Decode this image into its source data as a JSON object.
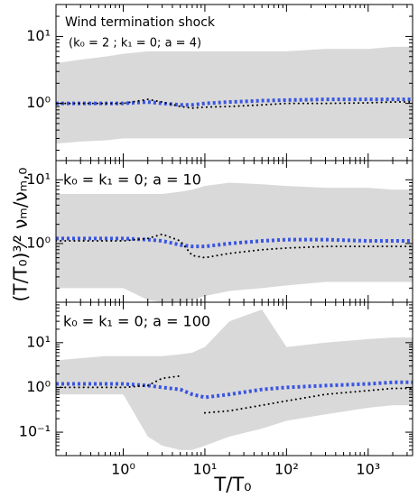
{
  "chart_data": [
    {
      "type": "line",
      "title": "Wind termination shock",
      "subtitle": "(k₀ = 2 ; k₁ = 0; a = 4)",
      "x": [
        0.15,
        0.3,
        0.6,
        1,
        2,
        3,
        5,
        7,
        10,
        20,
        50,
        100,
        300,
        1000,
        2000,
        3500
      ],
      "series": [
        {
          "name": "blue",
          "color": "#3a55e0",
          "values": [
            1,
            1,
            1,
            1,
            1.05,
            1.0,
            0.95,
            0.95,
            1,
            1.05,
            1.1,
            1.12,
            1.15,
            1.15,
            1.15,
            1.15
          ]
        },
        {
          "name": "black",
          "color": "#000000",
          "values": [
            1,
            1,
            1,
            1,
            1.15,
            1.05,
            0.9,
            0.85,
            0.88,
            0.9,
            0.95,
            1,
            1,
            1.02,
            1.05,
            1.05
          ]
        }
      ],
      "band": {
        "color": "#d9d9d9",
        "lower": [
          0.25,
          0.27,
          0.28,
          0.3,
          0.3,
          0.3,
          0.3,
          0.3,
          0.3,
          0.3,
          0.3,
          0.3,
          0.3,
          0.3,
          0.3,
          0.3
        ],
        "upper": [
          4,
          4.5,
          5,
          5.5,
          6,
          6,
          6,
          6,
          6,
          6,
          6,
          6,
          6.5,
          6.5,
          7,
          7
        ]
      },
      "ylim": [
        0.14,
        30
      ],
      "yticks": [
        {
          "value": 1,
          "label": "10⁰"
        },
        {
          "value": 10,
          "label": "10¹"
        }
      ],
      "log_y": true
    },
    {
      "type": "line",
      "title": "k₀ = k₁ = 0; a = 10",
      "ylabel": "(T/T₀)³⁄² νₘ/νₘ,₀",
      "x": [
        0.15,
        0.3,
        0.6,
        1,
        2,
        3,
        5,
        7,
        10,
        20,
        50,
        100,
        300,
        1000,
        2000,
        3500
      ],
      "series": [
        {
          "name": "blue",
          "color": "#3a55e0",
          "values": [
            1.2,
            1.2,
            1.2,
            1.2,
            1.15,
            1.1,
            0.95,
            0.9,
            0.9,
            1,
            1.1,
            1.15,
            1.15,
            1.1,
            1.1,
            1.1
          ]
        },
        {
          "name": "black",
          "color": "#000000",
          "values": [
            1.1,
            1.1,
            1.1,
            1.1,
            1.2,
            1.4,
            1.1,
            0.65,
            0.6,
            0.7,
            0.8,
            0.85,
            0.9,
            0.9,
            0.9,
            0.9
          ]
        }
      ],
      "band": {
        "color": "#d9d9d9",
        "lower": [
          0.2,
          0.2,
          0.2,
          0.2,
          0.13,
          0.12,
          0.12,
          0.13,
          0.15,
          0.18,
          0.2,
          0.22,
          0.25,
          0.25,
          0.25,
          0.25
        ],
        "upper": [
          6,
          6,
          6,
          6,
          6,
          6,
          6.5,
          7,
          8,
          9,
          8.5,
          8,
          7.5,
          7.5,
          7,
          7
        ]
      },
      "ylim": [
        0.12,
        20
      ],
      "yticks": [
        {
          "value": 1,
          "label": "10⁰"
        },
        {
          "value": 10,
          "label": "10¹"
        }
      ],
      "log_y": true
    },
    {
      "type": "line",
      "title": "k₀ = k₁ = 0; a = 100",
      "xlabel": "T/T₀",
      "x": [
        0.15,
        0.3,
        0.6,
        1,
        2,
        3,
        5,
        7,
        10,
        20,
        50,
        100,
        300,
        1000,
        2000,
        3500
      ],
      "series": [
        {
          "name": "blue",
          "color": "#3a55e0",
          "values": [
            1.2,
            1.2,
            1.2,
            1.2,
            1.1,
            1.0,
            0.9,
            0.7,
            0.6,
            0.7,
            0.9,
            1.0,
            1.1,
            1.2,
            1.3,
            1.3
          ]
        },
        {
          "name": "black",
          "color": "#000000",
          "values": [
            1,
            1,
            1,
            1,
            1.1,
            1.6,
            1.8,
            null,
            0.27,
            0.3,
            0.4,
            0.5,
            0.7,
            0.85,
            0.95,
            0.95
          ]
        }
      ],
      "band": {
        "color": "#d9d9d9",
        "lower": [
          0.7,
          0.7,
          0.7,
          0.7,
          0.08,
          0.05,
          0.04,
          0.04,
          0.05,
          0.08,
          0.12,
          0.18,
          0.25,
          0.35,
          0.4,
          0.4
        ],
        "upper": [
          4,
          4.5,
          5,
          5,
          5,
          5,
          5.5,
          6,
          8,
          30,
          55,
          8,
          10,
          12,
          13,
          13
        ]
      },
      "ylim": [
        0.03,
        80
      ],
      "yticks": [
        {
          "value": 0.1,
          "label": "10⁻¹"
        },
        {
          "value": 1,
          "label": "10⁰"
        },
        {
          "value": 10,
          "label": "10¹"
        }
      ],
      "log_y": true,
      "xlim": [
        0.15,
        3500
      ],
      "xticks": [
        {
          "value": 1,
          "label": "10⁰"
        },
        {
          "value": 10,
          "label": "10¹"
        },
        {
          "value": 100,
          "label": "10²"
        },
        {
          "value": 1000,
          "label": "10³"
        }
      ],
      "log_x": true
    }
  ]
}
